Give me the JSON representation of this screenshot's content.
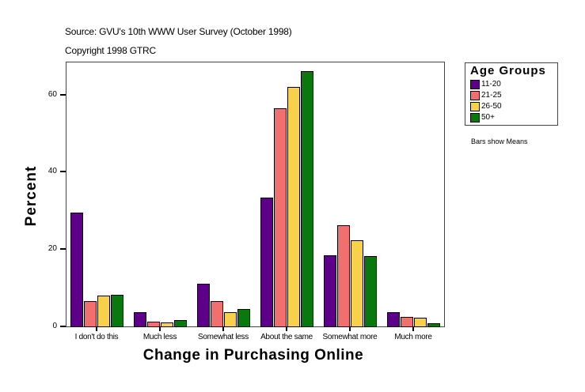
{
  "header": {
    "source": "Source: GVU's 10th WWW User Survey (October 1998)",
    "copyright": "Copyright 1998 GTRC"
  },
  "legend": {
    "title": "Age Groups",
    "items": [
      {
        "label": "11-20",
        "color": "#5c0087"
      },
      {
        "label": "21-25",
        "color": "#f07070"
      },
      {
        "label": "26-50",
        "color": "#f7d04c"
      },
      {
        "label": "50+",
        "color": "#0a780f"
      }
    ]
  },
  "note": "Bars show Means",
  "axes": {
    "x_title": "Change in Purchasing Online",
    "y_title": "Percent",
    "y_ticks": [
      "0",
      "20",
      "40",
      "60"
    ]
  },
  "chart_data": {
    "type": "bar",
    "title": "Source: GVU's 10th WWW User Survey (October 1998)",
    "subtitle": "Copyright 1998 GTRC",
    "xlabel": "Change in Purchasing Online",
    "ylabel": "Percent",
    "ylim": [
      0,
      68.5
    ],
    "yticks": [
      0,
      20,
      40,
      60
    ],
    "grid": false,
    "legend_position": "right",
    "legend_title": "Age Groups",
    "annotation": "Bars show Means",
    "categories": [
      "I don't do this",
      "Much less",
      "Somewhat less",
      "About the same",
      "Somewhat more",
      "Much more"
    ],
    "series": [
      {
        "name": "11-20",
        "color": "#5c0087",
        "values": [
          29.4,
          3.7,
          11.0,
          33.3,
          18.4,
          3.7
        ]
      },
      {
        "name": "21-25",
        "color": "#f07070",
        "values": [
          6.5,
          1.2,
          6.5,
          56.4,
          26.2,
          2.5
        ]
      },
      {
        "name": "26-50",
        "color": "#f7d04c",
        "values": [
          8.0,
          1.0,
          3.7,
          62.0,
          22.3,
          2.2
        ]
      },
      {
        "name": "50+",
        "color": "#0a780f",
        "values": [
          8.2,
          1.6,
          4.5,
          66.0,
          18.2,
          0.8
        ]
      }
    ]
  }
}
